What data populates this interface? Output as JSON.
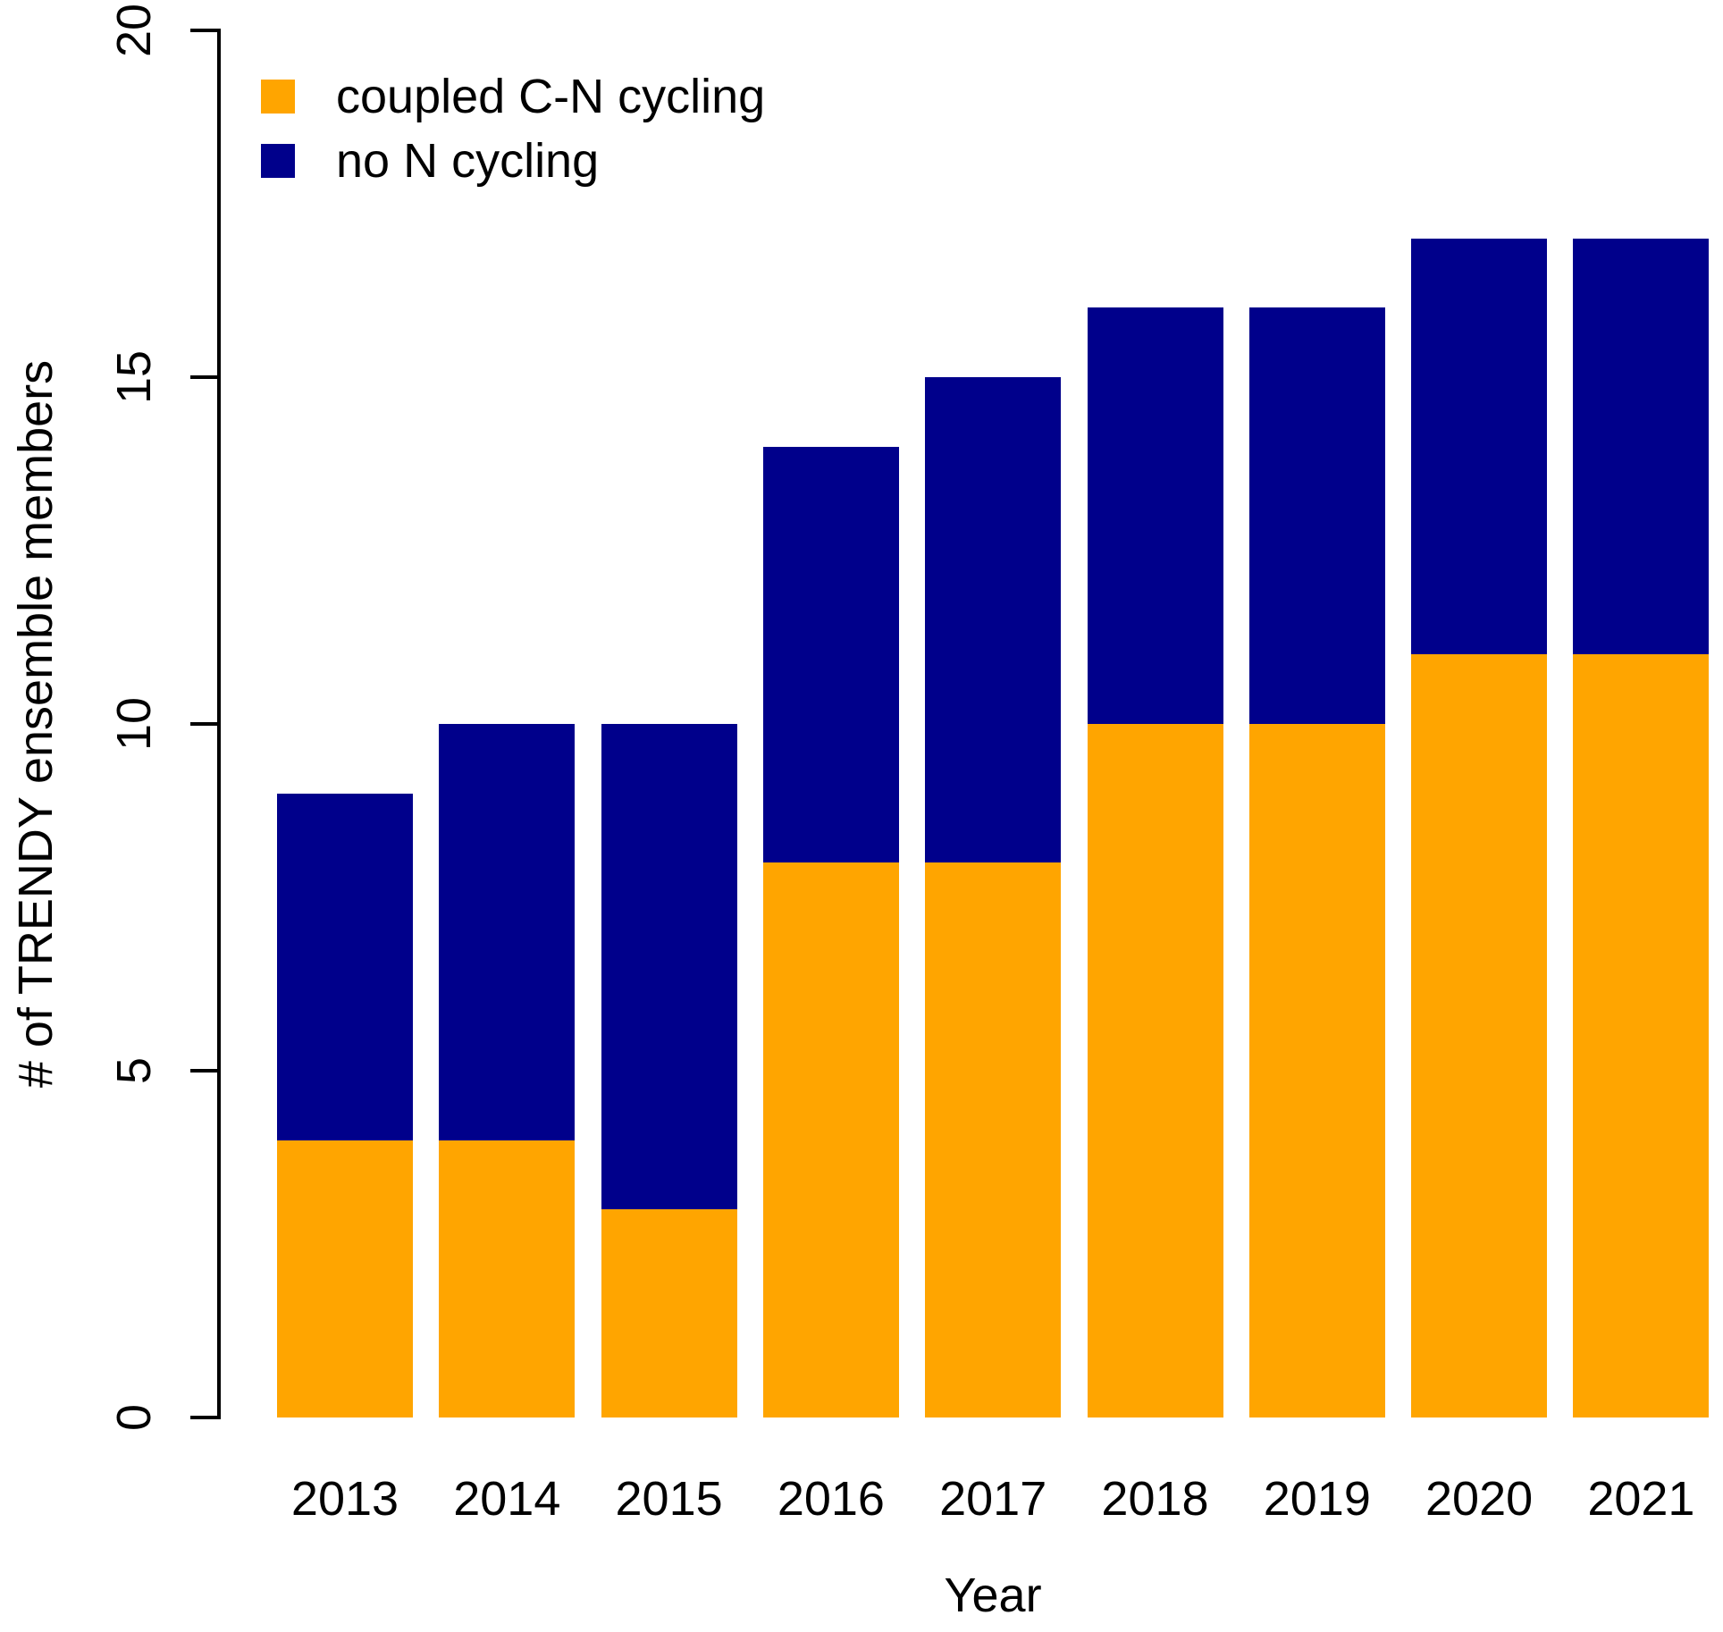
{
  "chart_data": {
    "type": "bar",
    "stacked": true,
    "title": "",
    "xlabel": "Year",
    "ylabel": "# of TRENDY ensemble members",
    "categories": [
      "2013",
      "2014",
      "2015",
      "2016",
      "2017",
      "2018",
      "2019",
      "2020",
      "2021"
    ],
    "series": [
      {
        "name": "coupled C-N cycling",
        "color": "#FFA500",
        "values": [
          4,
          4,
          3,
          8,
          8,
          10,
          10,
          11,
          11
        ]
      },
      {
        "name": "no N cycling",
        "color": "#00008B",
        "values": [
          5,
          6,
          7,
          6,
          7,
          6,
          6,
          6,
          6
        ]
      }
    ],
    "stack_totals": [
      9,
      10,
      10,
      14,
      15,
      16,
      16,
      17,
      17
    ],
    "ylim": [
      0,
      20
    ],
    "yticks": [
      "0",
      "5",
      "10",
      "15",
      "20"
    ],
    "grid": false,
    "legend_position": "top-left",
    "legend": {
      "items": [
        {
          "label": "coupled C-N cycling",
          "color": "#FFA500"
        },
        {
          "label": "no N cycling",
          "color": "#00008B"
        }
      ]
    },
    "background": "#FFFFFF",
    "text_color": "#000000"
  }
}
